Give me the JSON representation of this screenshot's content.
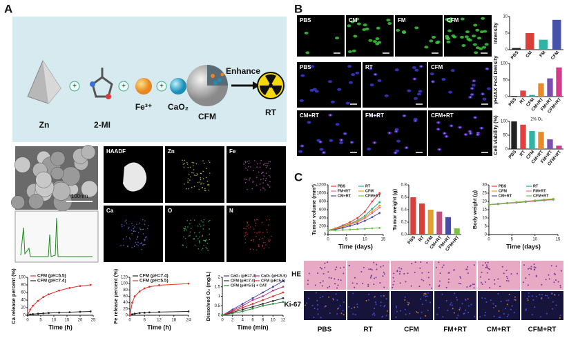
{
  "panel_a": {
    "label": "A",
    "schematic": {
      "zn": "Zn",
      "mi": "2-MI",
      "fe": "Fe³⁺",
      "cao2": "CaO₂",
      "cfm": "CFM",
      "enhance": "Enhance",
      "rt": "RT"
    },
    "sem_scale": "100nm",
    "eds_maps": [
      "HAADF",
      "Zn",
      "Fe",
      "Ca",
      "O",
      "N"
    ]
  },
  "panel_b": {
    "label": "B",
    "if_labels": [
      "PBS",
      "CM",
      "FM",
      "CFM",
      "PBS",
      "RT",
      "CFM",
      "CM+RT",
      "FM+RT",
      "CFM+RT"
    ]
  },
  "panel_c": {
    "label": "C",
    "histology_rows": [
      "HE",
      "Ki-67"
    ],
    "histology_groups": [
      "PBS",
      "RT",
      "CFM",
      "FM+RT",
      "CM+RT",
      "CFM+RT"
    ]
  },
  "chart_data": [
    {
      "type": "line",
      "xlabel": "Time (h)",
      "ylabel": "Ca release percent (%)",
      "x": [
        0,
        1,
        2,
        4,
        6,
        8,
        12,
        16,
        20,
        24
      ],
      "xlim": [
        0,
        25
      ],
      "xticks": [
        0,
        5,
        10,
        15,
        20,
        25
      ],
      "ylim": [
        0,
        100
      ],
      "yticks": [
        0,
        20,
        40,
        60,
        80,
        100
      ],
      "series": [
        {
          "name": "CFM (pH=5.5)",
          "color": "#e0322b",
          "values": [
            0,
            15,
            25,
            38,
            48,
            55,
            65,
            72,
            77,
            80
          ]
        },
        {
          "name": "CFM (pH=7.4)",
          "color": "#222222",
          "values": [
            0,
            2,
            3,
            4,
            5,
            6,
            7,
            8,
            9,
            10
          ]
        }
      ]
    },
    {
      "type": "line",
      "xlabel": "Time (h)",
      "ylabel": "Fe release percent (%)",
      "x": [
        0,
        1,
        2,
        4,
        6,
        8,
        12,
        24
      ],
      "xlim": [
        0,
        24
      ],
      "xticks": [
        0,
        6,
        12,
        18,
        24
      ],
      "ylim": [
        0,
        120
      ],
      "yticks": [
        0,
        20,
        40,
        60,
        80,
        100,
        120
      ],
      "series": [
        {
          "name": "CFM (pH=7.4)",
          "color": "#222222",
          "values": [
            0,
            3,
            5,
            7,
            8,
            9,
            10,
            12
          ]
        },
        {
          "name": "CFM (pH=5.5)",
          "color": "#e0322b",
          "values": [
            0,
            40,
            60,
            75,
            85,
            90,
            95,
            100
          ]
        }
      ]
    },
    {
      "type": "line",
      "xlabel": "Time (min)",
      "ylabel": "Dissolved O₂ (mg/L)",
      "x": [
        0,
        2,
        4,
        6,
        8,
        10,
        12
      ],
      "xlim": [
        0,
        12
      ],
      "xticks": [
        0,
        2,
        4,
        6,
        8,
        10,
        12
      ],
      "ylim": [
        0,
        2
      ],
      "yticks": [
        0,
        0.5,
        1,
        1.5,
        2
      ],
      "series": [
        {
          "name": "CaO₂ (pH=7.4)",
          "color": "#3a3aa0",
          "values": [
            0,
            0.3,
            0.6,
            0.9,
            1.2,
            1.5,
            1.8
          ]
        },
        {
          "name": "CaO₂ (pH=5.5)",
          "color": "#b03a8a",
          "values": [
            0,
            0.25,
            0.5,
            0.8,
            1.0,
            1.3,
            1.5
          ]
        },
        {
          "name": "CFM (pH=7.4)",
          "color": "#2a2a2a",
          "values": [
            0,
            0.15,
            0.3,
            0.45,
            0.6,
            0.75,
            0.9
          ]
        },
        {
          "name": "CFM (pH=5.5)",
          "color": "#e0322b",
          "values": [
            0,
            0.2,
            0.4,
            0.6,
            0.8,
            1.0,
            1.2
          ]
        },
        {
          "name": "CFM (pH=5.5) + CAT",
          "color": "#2a8a3a",
          "values": [
            0,
            0.1,
            0.2,
            0.35,
            0.5,
            0.6,
            0.7
          ]
        }
      ]
    },
    {
      "type": "bar",
      "ylabel": "Intensity",
      "categories": [
        "PBS",
        "CM",
        "FM",
        "CFM"
      ],
      "values": [
        0.5,
        5,
        3,
        9
      ],
      "colors": [
        "#222222",
        "#d9403a",
        "#2fb3a3",
        "#4453a8"
      ],
      "ylim": [
        0,
        10
      ],
      "yticks": [
        0,
        5,
        10
      ]
    },
    {
      "type": "bar",
      "ylabel": "γH2AX Foci Density",
      "categories": [
        "PBS",
        "RT",
        "CFM",
        "CM+RT",
        "FM+RT",
        "CFM+RT"
      ],
      "values": [
        2,
        18,
        5,
        40,
        55,
        88
      ],
      "colors": [
        "#222222",
        "#e04040",
        "#2fb3a3",
        "#e88a2a",
        "#7a4fb0",
        "#d43a8a"
      ],
      "ylim": [
        0,
        100
      ],
      "yticks": [
        0,
        50,
        100
      ]
    },
    {
      "type": "bar",
      "ylabel": "Cell viability (%)",
      "annotation": "2% O₂",
      "categories": [
        "PBS",
        "RT",
        "CFM",
        "CM+RT",
        "FM+RT",
        "CFM+RT"
      ],
      "values": [
        100,
        88,
        65,
        62,
        35,
        12
      ],
      "colors": [
        "#222222",
        "#e04040",
        "#2fb3a3",
        "#e88a2a",
        "#7a4fb0",
        "#d43a8a"
      ],
      "ylim": [
        0,
        100
      ],
      "yticks": [
        0,
        50,
        100
      ]
    },
    {
      "type": "line",
      "xlabel": "Time (days)",
      "ylabel": "Tumor volume (mm³)",
      "x": [
        0,
        2,
        4,
        6,
        8,
        10,
        12,
        14
      ],
      "xlim": [
        0,
        15
      ],
      "xticks": [
        0,
        5,
        10,
        15
      ],
      "ylim": [
        0,
        1200
      ],
      "yticks": [
        0,
        200,
        400,
        600,
        800,
        1000,
        1200
      ],
      "series": [
        {
          "name": "PBS",
          "color": "#e8362d",
          "values": [
            100,
            150,
            220,
            300,
            400,
            550,
            800,
            1000
          ]
        },
        {
          "name": "RT",
          "color": "#1aa89a",
          "values": [
            100,
            140,
            200,
            260,
            340,
            450,
            620,
            780
          ]
        },
        {
          "name": "FM+RT",
          "color": "#e46fa0",
          "values": [
            100,
            130,
            180,
            240,
            300,
            390,
            520,
            650
          ]
        },
        {
          "name": "CFM",
          "color": "#f39c12",
          "values": [
            100,
            140,
            190,
            250,
            320,
            420,
            560,
            700
          ]
        },
        {
          "name": "CM+RT",
          "color": "#4a4aa8",
          "values": [
            100,
            120,
            160,
            210,
            260,
            330,
            420,
            520
          ]
        },
        {
          "name": "CFM+RT",
          "color": "#6cc24a",
          "values": [
            100,
            100,
            110,
            120,
            130,
            140,
            150,
            160
          ]
        }
      ]
    },
    {
      "type": "bar",
      "ylabel": "Tumor weight (g)",
      "categories": [
        "PBS",
        "RT",
        "CFM",
        "CM+RT",
        "FM+RT",
        "CFM+RT"
      ],
      "values": [
        0.6,
        0.5,
        0.4,
        0.37,
        0.28,
        0.1
      ],
      "colors": [
        "#d9403a",
        "#d9403a",
        "#e0a030",
        "#c0507a",
        "#4a4aa8",
        "#7cc24a"
      ],
      "ylim": [
        0,
        0.8
      ],
      "yticks": [
        {
          "value": 0,
          "label": "0.0"
        },
        0.2,
        0.4,
        0.6,
        0.8
      ]
    },
    {
      "type": "line",
      "xlabel": "Time (days)",
      "ylabel": "Body weight (g)",
      "x": [
        0,
        2,
        4,
        6,
        8,
        10,
        12,
        14
      ],
      "xlim": [
        0,
        15
      ],
      "xticks": [
        0,
        5,
        10,
        15
      ],
      "ylim": [
        0,
        30
      ],
      "yticks": [
        0,
        5,
        10,
        15,
        20,
        25,
        30
      ],
      "series": [
        {
          "name": "PBS",
          "color": "#e8362d",
          "values": [
            18,
            18.5,
            19,
            19.5,
            20,
            20.5,
            21,
            21.5
          ]
        },
        {
          "name": "RT",
          "color": "#1aa89a",
          "values": [
            18,
            18.4,
            18.9,
            19.3,
            19.8,
            20.3,
            20.8,
            21.2
          ]
        },
        {
          "name": "CFM",
          "color": "#f39c12",
          "values": [
            18,
            18.6,
            19.1,
            19.6,
            20.1,
            20.6,
            21.1,
            21.6
          ]
        },
        {
          "name": "FM+RT",
          "color": "#e46fa0",
          "values": [
            18,
            18.3,
            18.8,
            19.2,
            19.7,
            20.1,
            20.6,
            21
          ]
        },
        {
          "name": "CM+RT",
          "color": "#4a4aa8",
          "values": [
            18,
            18.5,
            19,
            19.4,
            19.9,
            20.4,
            20.9,
            21.3
          ]
        },
        {
          "name": "CFM+RT",
          "color": "#6cc24a",
          "values": [
            18,
            18.4,
            19,
            19.5,
            20,
            20.5,
            21,
            21.4
          ]
        }
      ]
    }
  ]
}
